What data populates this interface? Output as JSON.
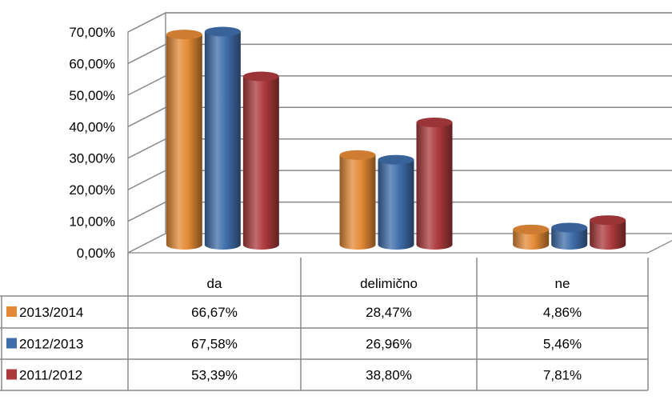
{
  "chart_data": {
    "type": "bar",
    "categories": [
      "da",
      "delimično",
      "ne"
    ],
    "series": [
      {
        "name": "2013/2014",
        "values": [
          66.67,
          28.47,
          4.86
        ],
        "labels": [
          "66,67%",
          "28,47%",
          "4,86%"
        ],
        "color": "#E48A36"
      },
      {
        "name": "2012/2013",
        "values": [
          67.58,
          26.96,
          5.46
        ],
        "labels": [
          "67,58%",
          "26,96%",
          "5,46%"
        ],
        "color": "#3F6DAA"
      },
      {
        "name": "2011/2012",
        "values": [
          53.39,
          38.8,
          7.81
        ],
        "labels": [
          "53,39%",
          "38,80%",
          "7,81%"
        ],
        "color": "#AC3A3C"
      }
    ],
    "yticks": [
      0,
      10,
      20,
      30,
      40,
      50,
      60,
      70
    ],
    "ytick_labels": [
      "0,00%",
      "10,00%",
      "20,00%",
      "30,00%",
      "40,00%",
      "50,00%",
      "60,00%",
      "70,00%"
    ],
    "ylim": [
      0,
      70
    ],
    "grid": true,
    "style": "3d-cylinder",
    "legend": "data-table-below"
  }
}
